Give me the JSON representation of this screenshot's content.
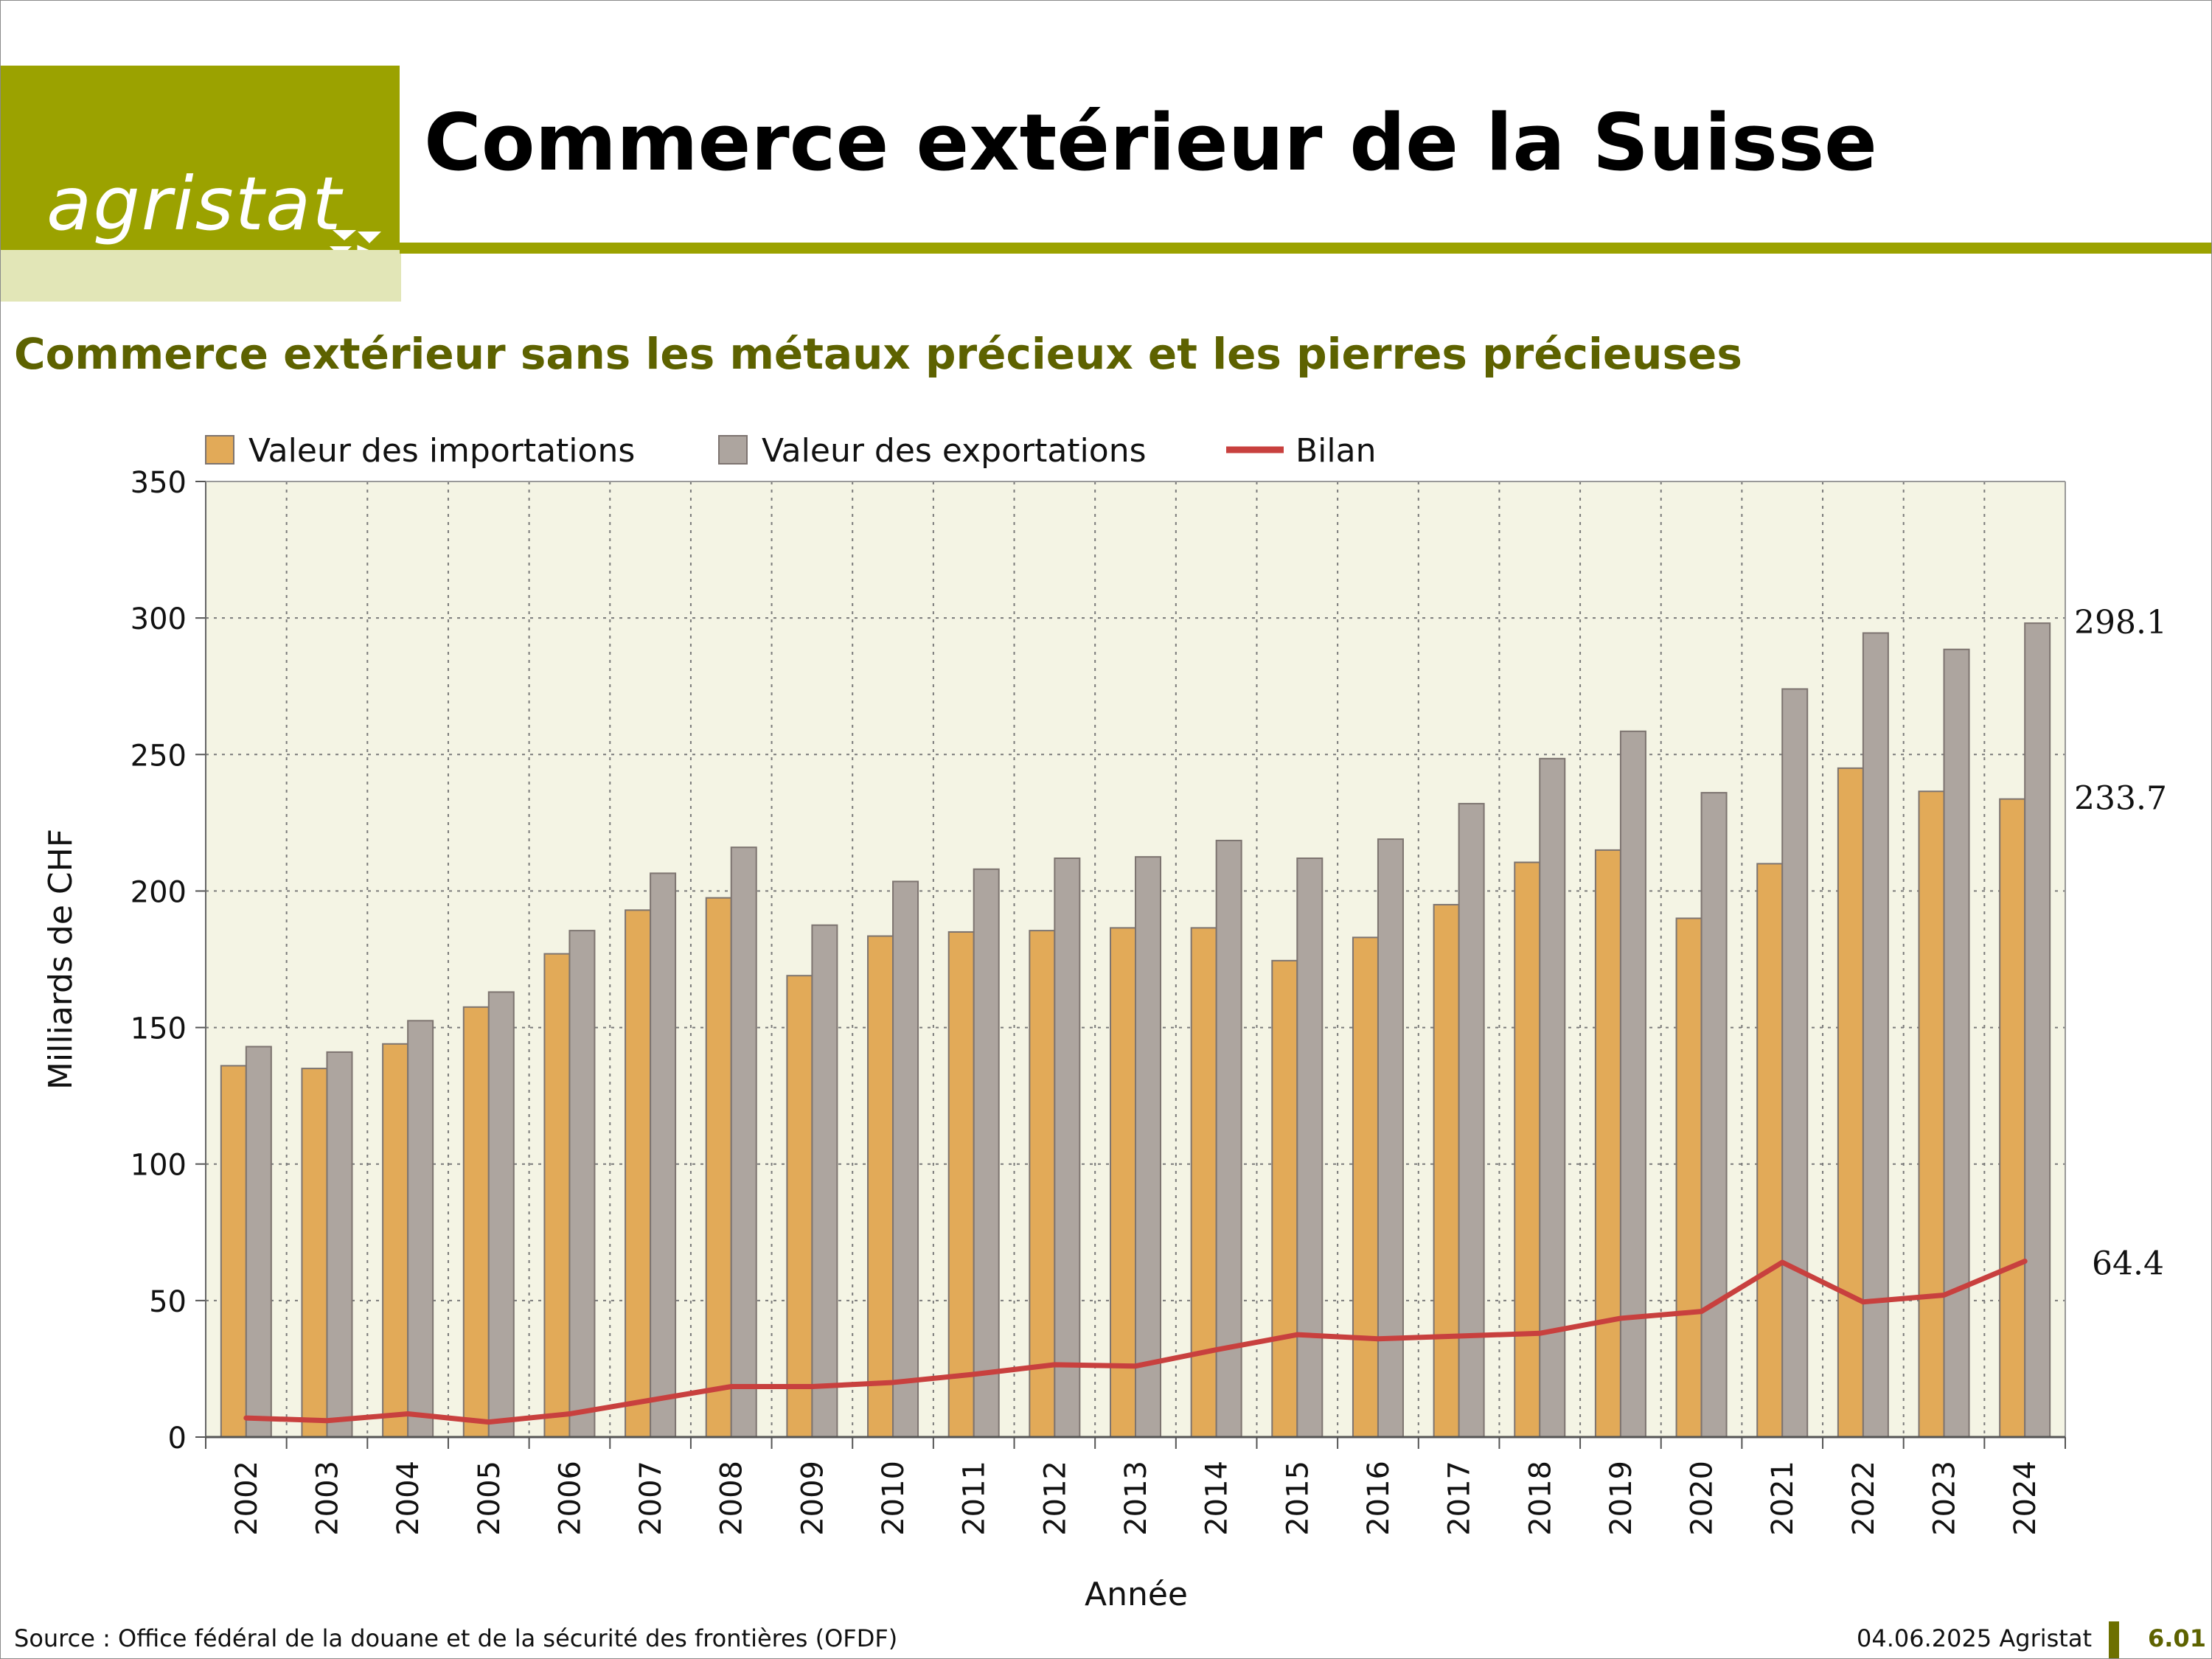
{
  "header": {
    "logo_text": "agristat",
    "title": "Commerce extérieur de la Suisse"
  },
  "subtitle": "Commerce extérieur sans les métaux précieux et les pierres précieuses",
  "footer": {
    "source": "Source : Office fédéral de la douane et de la sécurité des frontières (OFDF)",
    "date": "04.06.2025 Agristat",
    "page": "6.01"
  },
  "colors": {
    "brand": "#9ba200",
    "brand_light": "#e2e6b7",
    "subtitle": "#5d6200",
    "plot_bg": "#f4f4e4",
    "imports": "#e2aa58",
    "exports": "#ada59f",
    "balance": "#c8403e"
  },
  "chart_data": {
    "type": "bar",
    "xlabel": "Année",
    "ylabel": "Milliards de CHF",
    "ylim": [
      0,
      350
    ],
    "yticks": [
      0,
      50,
      100,
      150,
      200,
      250,
      300,
      350
    ],
    "grid": true,
    "legend_position": "top",
    "categories": [
      "2002",
      "2003",
      "2004",
      "2005",
      "2006",
      "2007",
      "2008",
      "2009",
      "2010",
      "2011",
      "2012",
      "2013",
      "2014",
      "2015",
      "2016",
      "2017",
      "2018",
      "2019",
      "2020",
      "2021",
      "2022",
      "2023",
      "2024"
    ],
    "series": [
      {
        "name": "Valeur des importations",
        "type": "bar",
        "values": [
          136,
          135,
          144,
          157.5,
          177,
          193,
          197.5,
          169,
          183.5,
          185,
          185.5,
          186.5,
          186.5,
          174.5,
          183,
          195,
          210.5,
          215,
          190,
          210,
          245,
          236.5,
          233.7
        ]
      },
      {
        "name": "Valeur des exportations",
        "type": "bar",
        "values": [
          143,
          141,
          152.5,
          163,
          185.5,
          206.5,
          216,
          187.5,
          203.5,
          208,
          212,
          212.5,
          218.5,
          212,
          219,
          232,
          248.5,
          258.5,
          236,
          274,
          294.5,
          288.5,
          298.1
        ]
      },
      {
        "name": "Bilan",
        "type": "line",
        "values": [
          7,
          6,
          8.5,
          5.5,
          8.5,
          13.5,
          18.5,
          18.5,
          20,
          23,
          26.5,
          26,
          32,
          37.5,
          36,
          37,
          38,
          43.5,
          46,
          64,
          49.5,
          52,
          64.4
        ]
      }
    ],
    "annotations": [
      "298.1",
      "233.7",
      "64.4"
    ]
  }
}
